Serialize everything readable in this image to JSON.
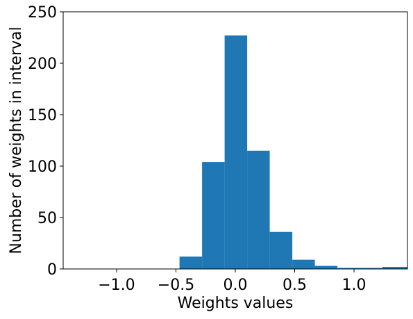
{
  "chart_data": {
    "type": "bar",
    "xlabel": "Weights values",
    "ylabel": "Number of weights in interval",
    "xlim": [
      -1.45,
      1.45
    ],
    "ylim": [
      0,
      250
    ],
    "xticks": [
      -1.0,
      -0.5,
      0.0,
      0.5,
      1.0
    ],
    "xtick_labels": [
      "−1.0",
      "−0.5",
      "0.0",
      "0.5",
      "1.0"
    ],
    "yticks": [
      0,
      50,
      100,
      150,
      200,
      250
    ],
    "ytick_labels": [
      "0",
      "50",
      "100",
      "150",
      "200",
      "250"
    ],
    "bins": [
      {
        "start": -0.47,
        "end": -0.28,
        "count": 12
      },
      {
        "start": -0.28,
        "end": -0.09,
        "count": 104
      },
      {
        "start": -0.09,
        "end": 0.1,
        "count": 227
      },
      {
        "start": 0.1,
        "end": 0.29,
        "count": 115
      },
      {
        "start": 0.29,
        "end": 0.48,
        "count": 36
      },
      {
        "start": 0.48,
        "end": 0.67,
        "count": 9
      },
      {
        "start": 0.67,
        "end": 0.86,
        "count": 3
      },
      {
        "start": 0.86,
        "end": 1.05,
        "count": 1
      },
      {
        "start": 1.05,
        "end": 1.24,
        "count": 1
      },
      {
        "start": 1.24,
        "end": 1.45,
        "count": 2
      }
    ],
    "bar_color": "#1f77b4",
    "grid": false,
    "legend": "none"
  }
}
